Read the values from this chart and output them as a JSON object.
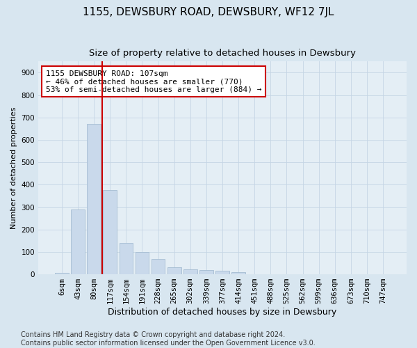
{
  "title": "1155, DEWSBURY ROAD, DEWSBURY, WF12 7JL",
  "subtitle": "Size of property relative to detached houses in Dewsbury",
  "xlabel": "Distribution of detached houses by size in Dewsbury",
  "ylabel": "Number of detached properties",
  "bar_labels": [
    "6sqm",
    "43sqm",
    "80sqm",
    "117sqm",
    "154sqm",
    "191sqm",
    "228sqm",
    "265sqm",
    "302sqm",
    "339sqm",
    "377sqm",
    "414sqm",
    "451sqm",
    "488sqm",
    "525sqm",
    "562sqm",
    "599sqm",
    "636sqm",
    "673sqm",
    "710sqm",
    "747sqm"
  ],
  "bar_values": [
    5,
    290,
    670,
    375,
    140,
    100,
    70,
    30,
    22,
    20,
    15,
    10,
    0,
    0,
    0,
    0,
    0,
    0,
    0,
    0,
    0
  ],
  "bar_color": "#c9d9eb",
  "bar_edge_color": "#9ab5cc",
  "vline_x_index": 2,
  "vline_color": "#cc0000",
  "annotation_text": "1155 DEWSBURY ROAD: 107sqm\n← 46% of detached houses are smaller (770)\n53% of semi-detached houses are larger (884) →",
  "annotation_box_facecolor": "#ffffff",
  "annotation_box_edgecolor": "#cc0000",
  "ylim": [
    0,
    950
  ],
  "yticks": [
    0,
    100,
    200,
    300,
    400,
    500,
    600,
    700,
    800,
    900
  ],
  "grid_color": "#c5d5e5",
  "bg_color": "#d8e6f0",
  "plot_bg_color": "#e4eef5",
  "footer": "Contains HM Land Registry data © Crown copyright and database right 2024.\nContains public sector information licensed under the Open Government Licence v3.0.",
  "title_fontsize": 11,
  "subtitle_fontsize": 9.5,
  "xlabel_fontsize": 9,
  "ylabel_fontsize": 8,
  "tick_fontsize": 7.5,
  "annotation_fontsize": 8,
  "footer_fontsize": 7
}
